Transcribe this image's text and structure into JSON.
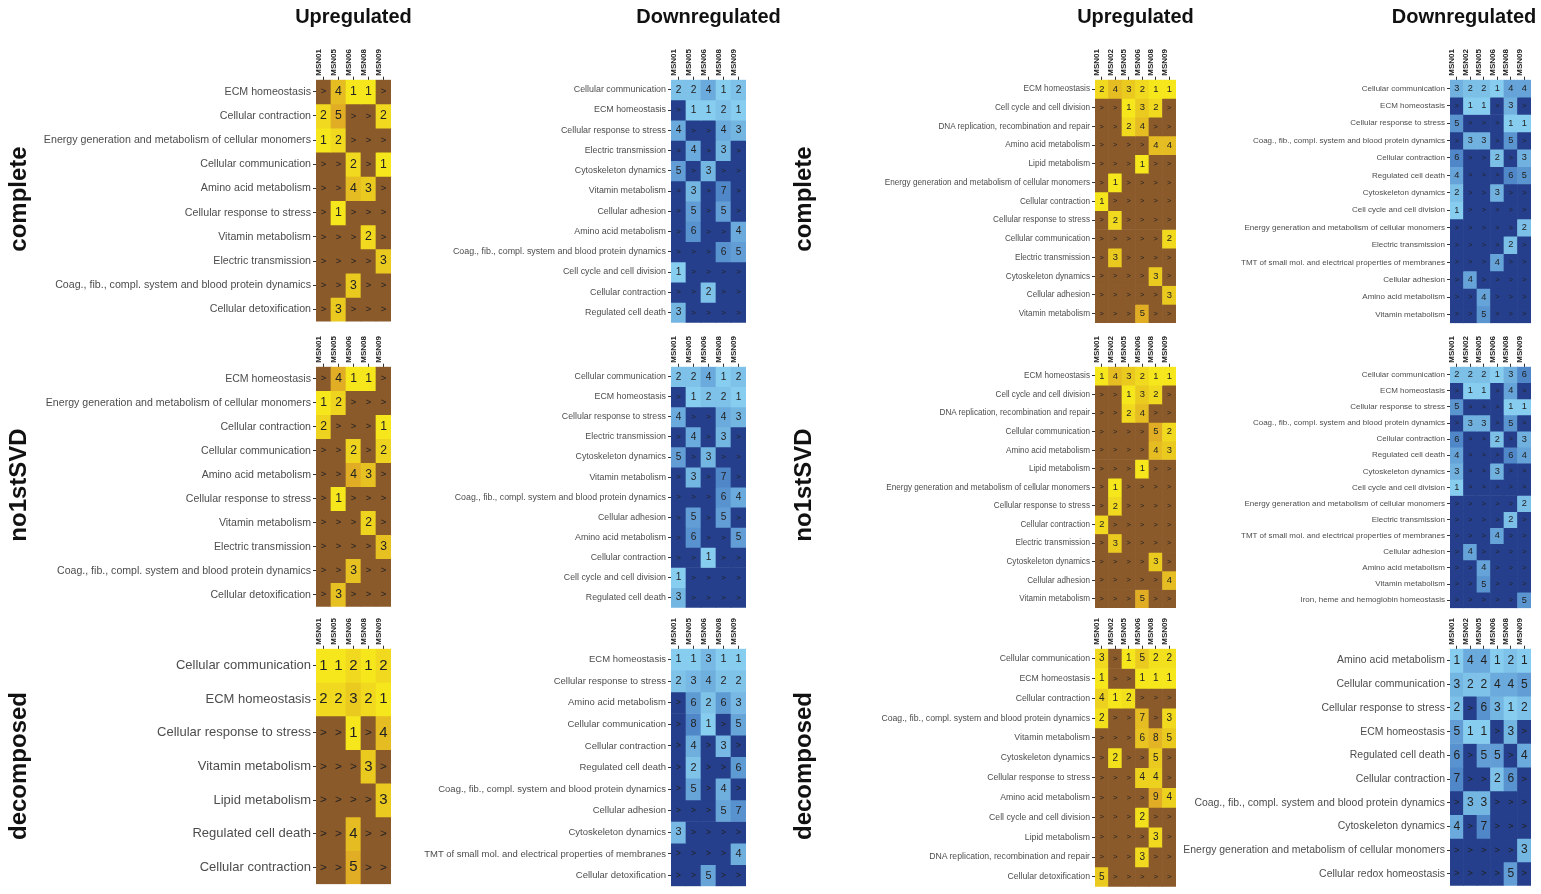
{
  "chart_data": [
    {
      "type": "heatmap",
      "title": "Upregulated",
      "ylabel": "complete",
      "colors": [
        "#f5e71c",
        "#e0ad24",
        "#8b5a2b"
      ],
      "categories": [
        "MSN01",
        "MSN05",
        "MSN06",
        "MSN08",
        "MSN09"
      ],
      "y_categories": [
        "ECM homeostasis",
        "Cellular contraction",
        "Energy generation and metabolism of cellular monomers",
        "Cellular communication",
        "Amino acid metabolism",
        "Cellular response to stress",
        "Vitamin metabolism",
        "Electric transmission",
        "Coag., fib., compl. system and blood protein dynamics",
        "Cellular detoxification"
      ],
      "cells": [
        [
          null,
          4,
          1,
          1,
          null
        ],
        [
          2,
          5,
          null,
          null,
          2
        ],
        [
          1,
          2,
          null,
          null,
          null
        ],
        [
          null,
          null,
          2,
          null,
          1
        ],
        [
          null,
          null,
          4,
          3,
          null
        ],
        [
          null,
          1,
          null,
          null,
          null
        ],
        [
          null,
          null,
          null,
          2,
          null
        ],
        [
          null,
          null,
          null,
          null,
          3
        ],
        [
          null,
          null,
          3,
          null,
          null
        ],
        [
          null,
          3,
          null,
          null,
          null
        ]
      ],
      "cell_labels": [
        [
          ">",
          "4",
          "1",
          "1",
          ">"
        ],
        [
          "2",
          "5",
          ">",
          ">",
          "2"
        ],
        [
          "1",
          "2",
          ">",
          ">",
          ">"
        ],
        [
          ">",
          ">",
          "2",
          ">",
          "1"
        ],
        [
          ">",
          ">",
          "4",
          "3",
          ">"
        ],
        [
          ">",
          "1",
          ">",
          ">",
          ">"
        ],
        [
          ">",
          ">",
          ">",
          "2",
          ">"
        ],
        [
          ">",
          ">",
          ">",
          ">",
          "3"
        ],
        [
          ">",
          ">",
          "3",
          ">",
          ">"
        ],
        [
          ">",
          "3",
          ">",
          ">",
          ">"
        ]
      ]
    },
    {
      "type": "heatmap",
      "title": "Downregulated",
      "colors": [
        "#87cdef",
        "#4f87c8",
        "#253f8c"
      ],
      "categories": [
        "MSN01",
        "MSN05",
        "MSN06",
        "MSN08",
        "MSN09"
      ],
      "y_categories": [
        "Cellular communication",
        "ECM homeostasis",
        "Cellular response to stress",
        "Electric transmission",
        "Cytoskeleton dynamics",
        "Vitamin metabolism",
        "Cellular adhesion",
        "Amino acid metabolism",
        "Coag., fib., compl. system and blood protein dynamics",
        "Cell cycle and cell division",
        "Cellular contraction",
        "Regulated cell death"
      ],
      "cells": [
        [
          2,
          2,
          4,
          1,
          2
        ],
        [
          null,
          1,
          1,
          2,
          1
        ],
        [
          4,
          null,
          null,
          4,
          3
        ],
        [
          null,
          4,
          null,
          3,
          null
        ],
        [
          5,
          null,
          3,
          null,
          null
        ],
        [
          null,
          3,
          null,
          7,
          null
        ],
        [
          null,
          5,
          null,
          5,
          null
        ],
        [
          null,
          6,
          null,
          null,
          4
        ],
        [
          null,
          null,
          null,
          6,
          5
        ],
        [
          1,
          null,
          null,
          null,
          null
        ],
        [
          null,
          null,
          2,
          null,
          null
        ],
        [
          3,
          null,
          null,
          null,
          null
        ]
      ],
      "cell_labels": [
        [
          "2",
          "2",
          "4",
          "1",
          "2"
        ],
        [
          ">",
          "1",
          "1",
          "2",
          "1"
        ],
        [
          "4",
          ">",
          ">",
          "4",
          "3"
        ],
        [
          ">",
          "4",
          ">",
          "3",
          ">"
        ],
        [
          "5",
          ">",
          "3",
          ">",
          ">"
        ],
        [
          ">",
          "3",
          ">",
          "7",
          ">"
        ],
        [
          ">",
          "5",
          ">",
          "5",
          ">"
        ],
        [
          ">",
          "6",
          ">",
          ">",
          "4"
        ],
        [
          ">",
          ">",
          ">",
          "6",
          "5"
        ],
        [
          "1",
          ">",
          ">",
          ">",
          ">"
        ],
        [
          ">",
          ">",
          "2",
          ">",
          ">"
        ],
        [
          "3",
          ">",
          ">",
          ">",
          ">"
        ]
      ]
    },
    {
      "type": "heatmap",
      "title": "Upregulated",
      "ylabel": "complete",
      "colors": [
        "#f5e71c",
        "#e0ad24",
        "#8b5a2b"
      ],
      "categories": [
        "MSN01",
        "MSN02",
        "MSN05",
        "MSN06",
        "MSN08",
        "MSN09"
      ],
      "y_categories": [
        "ECM homeostasis",
        "Cell cycle and cell division",
        "DNA replication, recombination and repair",
        "Amino acid metabolism",
        "Lipid metabolism",
        "Energy generation and metabolism of cellular monomers",
        "Cellular contraction",
        "Cellular response to stress",
        "Cellular communication",
        "Electric transmission",
        "Cytoskeleton dynamics",
        "Cellular adhesion",
        "Vitamin metabolism"
      ],
      "cells": [
        [
          2,
          4,
          3,
          2,
          1,
          1
        ],
        [
          null,
          null,
          1,
          3,
          2,
          null
        ],
        [
          null,
          null,
          2,
          4,
          null,
          null
        ],
        [
          null,
          null,
          null,
          null,
          4,
          4
        ],
        [
          null,
          null,
          null,
          1,
          null,
          null
        ],
        [
          null,
          1,
          null,
          null,
          null,
          null
        ],
        [
          1,
          null,
          null,
          null,
          null,
          null
        ],
        [
          null,
          2,
          null,
          null,
          null,
          null
        ],
        [
          null,
          null,
          null,
          null,
          null,
          2
        ],
        [
          null,
          3,
          null,
          null,
          null,
          null
        ],
        [
          null,
          null,
          null,
          null,
          3,
          null
        ],
        [
          null,
          null,
          null,
          null,
          null,
          3
        ],
        [
          null,
          null,
          null,
          5,
          null,
          null
        ]
      ],
      "cell_labels": [
        [
          "2",
          "4",
          "3",
          "2",
          "1",
          "1"
        ],
        [
          ">",
          ">",
          "1",
          "3",
          "2",
          ">"
        ],
        [
          ">",
          ">",
          "2",
          "4",
          ">",
          ">"
        ],
        [
          ">",
          ">",
          ">",
          ">",
          "4",
          "4"
        ],
        [
          ">",
          ">",
          ">",
          "1",
          ">",
          ">"
        ],
        [
          ">",
          "1",
          ">",
          ">",
          ">",
          ">"
        ],
        [
          "1",
          ">",
          ">",
          ">",
          ">",
          ">"
        ],
        [
          ">",
          "2",
          ">",
          ">",
          ">",
          ">"
        ],
        [
          ">",
          ">",
          ">",
          ">",
          ">",
          "2"
        ],
        [
          ">",
          "3",
          ">",
          ">",
          ">",
          ">"
        ],
        [
          ">",
          ">",
          ">",
          ">",
          "3",
          ">"
        ],
        [
          ">",
          ">",
          ">",
          ">",
          ">",
          "3"
        ],
        [
          ">",
          ">",
          ">",
          "5",
          ">",
          ">"
        ]
      ]
    },
    {
      "type": "heatmap",
      "title": "Downregulated",
      "colors": [
        "#87cdef",
        "#4f87c8",
        "#253f8c"
      ],
      "categories": [
        "MSN01",
        "MSN02",
        "MSN05",
        "MSN06",
        "MSN08",
        "MSN09"
      ],
      "y_categories": [
        "Cellular communication",
        "ECM homeostasis",
        "Cellular response to stress",
        "Coag., fib., compl. system and blood protein dynamics",
        "Cellular contraction",
        "Regulated cell death",
        "Cytoskeleton dynamics",
        "Cell cycle and cell division",
        "Energy generation and metabolism of cellular monomers",
        "Electric transmission",
        "TMT of small mol. and electrical properties of membranes",
        "Cellular adhesion",
        "Amino acid metabolism",
        "Vitamin metabolism"
      ],
      "cells": [
        [
          3,
          2,
          2,
          1,
          4,
          4
        ],
        [
          null,
          1,
          1,
          null,
          3,
          null
        ],
        [
          5,
          null,
          null,
          null,
          1,
          1
        ],
        [
          null,
          3,
          3,
          null,
          5,
          null
        ],
        [
          6,
          null,
          null,
          2,
          null,
          3
        ],
        [
          4,
          null,
          null,
          null,
          6,
          5
        ],
        [
          2,
          null,
          null,
          3,
          null,
          null
        ],
        [
          1,
          null,
          null,
          null,
          null,
          null
        ],
        [
          null,
          null,
          null,
          null,
          null,
          2
        ],
        [
          null,
          null,
          null,
          null,
          2,
          null
        ],
        [
          null,
          null,
          null,
          4,
          null,
          null
        ],
        [
          null,
          4,
          null,
          null,
          null,
          null
        ],
        [
          null,
          null,
          4,
          null,
          null,
          null
        ],
        [
          null,
          null,
          5,
          null,
          null,
          null
        ]
      ],
      "cell_labels": [
        [
          "3",
          "2",
          "2",
          "1",
          "4",
          "4"
        ],
        [
          ">",
          "1",
          "1",
          ">",
          "3",
          ">"
        ],
        [
          "5",
          ">",
          ">",
          ">",
          "1",
          "1"
        ],
        [
          ">",
          "3",
          "3",
          ">",
          "5",
          ">"
        ],
        [
          "6",
          ">",
          ">",
          "2",
          ">",
          "3"
        ],
        [
          "4",
          ">",
          ">",
          ">",
          "6",
          "5"
        ],
        [
          "2",
          ">",
          ">",
          "3",
          ">",
          ">"
        ],
        [
          "1",
          ">",
          ">",
          ">",
          ">",
          ">"
        ],
        [
          ">",
          ">",
          ">",
          ">",
          ">",
          "2"
        ],
        [
          ">",
          ">",
          ">",
          ">",
          "2",
          ">"
        ],
        [
          ">",
          ">",
          ">",
          "4",
          ">",
          ">"
        ],
        [
          ">",
          "4",
          ">",
          ">",
          ">",
          ">"
        ],
        [
          ">",
          ">",
          "4",
          ">",
          ">",
          ">"
        ],
        [
          ">",
          ">",
          "5",
          ">",
          ">",
          ">"
        ]
      ]
    },
    {
      "type": "heatmap",
      "ylabel": "no1stSVD",
      "colors": [
        "#f5e71c",
        "#e0ad24",
        "#8b5a2b"
      ],
      "categories": [
        "MSN01",
        "MSN05",
        "MSN06",
        "MSN08",
        "MSN09"
      ],
      "y_categories": [
        "ECM homeostasis",
        "Energy generation and metabolism of cellular monomers",
        "Cellular contraction",
        "Cellular communication",
        "Amino acid metabolism",
        "Cellular response to stress",
        "Vitamin metabolism",
        "Electric transmission",
        "Coag., fib., compl. system and blood protein dynamics",
        "Cellular detoxification"
      ],
      "cells": [
        [
          null,
          4,
          1,
          1,
          null
        ],
        [
          1,
          2,
          null,
          null,
          null
        ],
        [
          2,
          null,
          null,
          null,
          1
        ],
        [
          null,
          null,
          2,
          null,
          2
        ],
        [
          null,
          null,
          4,
          3,
          null
        ],
        [
          null,
          1,
          null,
          null,
          null
        ],
        [
          null,
          null,
          null,
          2,
          null
        ],
        [
          null,
          null,
          null,
          null,
          3
        ],
        [
          null,
          null,
          3,
          null,
          null
        ],
        [
          null,
          3,
          null,
          null,
          null
        ]
      ],
      "cell_labels": [
        [
          ">",
          "4",
          "1",
          "1",
          ">"
        ],
        [
          "1",
          "2",
          ">",
          ">",
          ">"
        ],
        [
          "2",
          ">",
          ">",
          ">",
          "1"
        ],
        [
          ">",
          ">",
          "2",
          ">",
          "2"
        ],
        [
          ">",
          ">",
          "4",
          "3",
          ">"
        ],
        [
          ">",
          "1",
          ">",
          ">",
          ">"
        ],
        [
          ">",
          ">",
          ">",
          "2",
          ">"
        ],
        [
          ">",
          ">",
          ">",
          ">",
          "3"
        ],
        [
          ">",
          ">",
          "3",
          ">",
          ">"
        ],
        [
          ">",
          "3",
          ">",
          ">",
          ">"
        ]
      ]
    },
    {
      "type": "heatmap",
      "colors": [
        "#87cdef",
        "#4f87c8",
        "#253f8c"
      ],
      "categories": [
        "MSN01",
        "MSN05",
        "MSN06",
        "MSN08",
        "MSN09"
      ],
      "y_categories": [
        "Cellular communication",
        "ECM homeostasis",
        "Cellular response to stress",
        "Electric transmission",
        "Cytoskeleton dynamics",
        "Vitamin metabolism",
        "Coag., fib., compl. system and blood protein dynamics",
        "Cellular adhesion",
        "Amino acid metabolism",
        "Cellular contraction",
        "Cell cycle and cell division",
        "Regulated cell death"
      ],
      "cells": [
        [
          2,
          2,
          4,
          1,
          2
        ],
        [
          null,
          1,
          2,
          2,
          1
        ],
        [
          4,
          null,
          null,
          4,
          3
        ],
        [
          null,
          4,
          null,
          3,
          null
        ],
        [
          5,
          null,
          3,
          null,
          null
        ],
        [
          null,
          3,
          null,
          7,
          null
        ],
        [
          null,
          null,
          null,
          6,
          4
        ],
        [
          null,
          5,
          null,
          5,
          null
        ],
        [
          null,
          6,
          null,
          null,
          5
        ],
        [
          null,
          null,
          1,
          null,
          null
        ],
        [
          1,
          null,
          null,
          null,
          null
        ],
        [
          3,
          null,
          null,
          null,
          null
        ]
      ],
      "cell_labels": [
        [
          "2",
          "2",
          "4",
          "1",
          "2"
        ],
        [
          ">",
          "1",
          "2",
          "2",
          "1"
        ],
        [
          "4",
          ">",
          ">",
          "4",
          "3"
        ],
        [
          ">",
          "4",
          ">",
          "3",
          ">"
        ],
        [
          "5",
          ">",
          "3",
          ">",
          ">"
        ],
        [
          ">",
          "3",
          ">",
          "7",
          ">"
        ],
        [
          ">",
          ">",
          ">",
          "6",
          "4"
        ],
        [
          ">",
          "5",
          ">",
          "5",
          ">"
        ],
        [
          ">",
          "6",
          ">",
          ">",
          "5"
        ],
        [
          ">",
          ">",
          "1",
          ">",
          ">"
        ],
        [
          "1",
          ">",
          ">",
          ">",
          ">"
        ],
        [
          "3",
          ">",
          ">",
          ">",
          ">"
        ]
      ]
    },
    {
      "type": "heatmap",
      "ylabel": "no1stSVD",
      "colors": [
        "#f5e71c",
        "#e0ad24",
        "#8b5a2b"
      ],
      "categories": [
        "MSN01",
        "MSN02",
        "MSN05",
        "MSN06",
        "MSN08",
        "MSN09"
      ],
      "y_categories": [
        "ECM homeostasis",
        "Cell cycle and cell division",
        "DNA replication, recombination and repair",
        "Cellular communication",
        "Amino acid metabolism",
        "Lipid metabolism",
        "Energy generation and metabolism of cellular monomers",
        "Cellular response to stress",
        "Cellular contraction",
        "Electric transmission",
        "Cytoskeleton dynamics",
        "Cellular adhesion",
        "Vitamin metabolism"
      ],
      "cells": [
        [
          1,
          4,
          3,
          2,
          1,
          1
        ],
        [
          null,
          null,
          1,
          3,
          2,
          null
        ],
        [
          null,
          null,
          2,
          4,
          null,
          null
        ],
        [
          null,
          null,
          null,
          null,
          5,
          2
        ],
        [
          null,
          null,
          null,
          null,
          4,
          3
        ],
        [
          null,
          null,
          null,
          1,
          null,
          null
        ],
        [
          null,
          1,
          null,
          null,
          null,
          null
        ],
        [
          null,
          2,
          null,
          null,
          null,
          null
        ],
        [
          2,
          null,
          null,
          null,
          null,
          null
        ],
        [
          null,
          3,
          null,
          null,
          null,
          null
        ],
        [
          null,
          null,
          null,
          null,
          3,
          null
        ],
        [
          null,
          null,
          null,
          null,
          null,
          4
        ],
        [
          null,
          null,
          null,
          5,
          null,
          null
        ]
      ],
      "cell_labels": [
        [
          "1",
          "4",
          "3",
          "2",
          "1",
          "1"
        ],
        [
          ">",
          ">",
          "1",
          "3",
          "2",
          ">"
        ],
        [
          ">",
          ">",
          "2",
          "4",
          ">",
          ">"
        ],
        [
          ">",
          ">",
          ">",
          ">",
          "5",
          "2"
        ],
        [
          ">",
          ">",
          ">",
          ">",
          "4",
          "3"
        ],
        [
          ">",
          ">",
          ">",
          "1",
          ">",
          ">"
        ],
        [
          ">",
          "1",
          ">",
          ">",
          ">",
          ">"
        ],
        [
          ">",
          "2",
          ">",
          ">",
          ">",
          ">"
        ],
        [
          "2",
          ">",
          ">",
          ">",
          ">",
          ">"
        ],
        [
          ">",
          "3",
          ">",
          ">",
          ">",
          ">"
        ],
        [
          ">",
          ">",
          ">",
          ">",
          "3",
          ">"
        ],
        [
          ">",
          ">",
          ">",
          ">",
          ">",
          "4"
        ],
        [
          ">",
          ">",
          ">",
          "5",
          ">",
          ">"
        ]
      ]
    },
    {
      "type": "heatmap",
      "colors": [
        "#87cdef",
        "#4f87c8",
        "#253f8c"
      ],
      "categories": [
        "MSN01",
        "MSN02",
        "MSN05",
        "MSN06",
        "MSN08",
        "MSN09"
      ],
      "y_categories": [
        "Cellular communication",
        "ECM homeostasis",
        "Cellular response to stress",
        "Coag., fib., compl. system and blood protein dynamics",
        "Cellular contraction",
        "Regulated cell death",
        "Cytoskeleton dynamics",
        "Cell cycle and cell division",
        "Energy generation and metabolism of cellular monomers",
        "Electric transmission",
        "TMT of small mol. and electrical properties of membranes",
        "Cellular adhesion",
        "Amino acid metabolism",
        "Vitamin metabolism",
        "Iron, heme and hemoglobin homeostasis"
      ],
      "cells": [
        [
          2,
          2,
          2,
          1,
          3,
          6
        ],
        [
          null,
          1,
          1,
          null,
          4,
          null
        ],
        [
          5,
          null,
          null,
          null,
          1,
          1
        ],
        [
          null,
          3,
          3,
          null,
          5,
          null
        ],
        [
          6,
          null,
          null,
          2,
          null,
          3
        ],
        [
          4,
          null,
          null,
          null,
          6,
          4
        ],
        [
          3,
          null,
          null,
          3,
          null,
          null
        ],
        [
          1,
          null,
          null,
          null,
          null,
          null
        ],
        [
          null,
          null,
          null,
          null,
          null,
          2
        ],
        [
          null,
          null,
          null,
          null,
          2,
          null
        ],
        [
          null,
          null,
          null,
          4,
          null,
          null
        ],
        [
          null,
          4,
          null,
          null,
          null,
          null
        ],
        [
          null,
          null,
          4,
          null,
          null,
          null
        ],
        [
          null,
          null,
          5,
          null,
          null,
          null
        ],
        [
          null,
          null,
          null,
          null,
          null,
          5
        ]
      ],
      "cell_labels": [
        [
          "2",
          "2",
          "2",
          "1",
          "3",
          "6"
        ],
        [
          ">",
          "1",
          "1",
          ">",
          "4",
          ">"
        ],
        [
          "5",
          ">",
          ">",
          ">",
          "1",
          "1"
        ],
        [
          ">",
          "3",
          "3",
          ">",
          "5",
          ">"
        ],
        [
          "6",
          ">",
          ">",
          "2",
          ">",
          "3"
        ],
        [
          "4",
          ">",
          ">",
          ">",
          "6",
          "4"
        ],
        [
          "3",
          ">",
          ">",
          "3",
          ">",
          ">"
        ],
        [
          "1",
          ">",
          ">",
          ">",
          ">",
          ">"
        ],
        [
          ">",
          ">",
          ">",
          ">",
          ">",
          "2"
        ],
        [
          ">",
          ">",
          ">",
          ">",
          "2",
          ">"
        ],
        [
          ">",
          ">",
          ">",
          "4",
          ">",
          ">"
        ],
        [
          ">",
          "4",
          ">",
          ">",
          ">",
          ">"
        ],
        [
          ">",
          ">",
          "4",
          ">",
          ">",
          ">"
        ],
        [
          ">",
          ">",
          "5",
          ">",
          ">",
          ">"
        ],
        [
          ">",
          ">",
          ">",
          ">",
          ">",
          "5"
        ]
      ]
    },
    {
      "type": "heatmap",
      "ylabel": "decomposed",
      "colors": [
        "#f5e71c",
        "#e0ad24",
        "#8b5a2b"
      ],
      "categories": [
        "MSN01",
        "MSN05",
        "MSN06",
        "MSN08",
        "MSN09"
      ],
      "y_categories": [
        "Cellular communication",
        "ECM homeostasis",
        "Cellular response to stress",
        "Vitamin metabolism",
        "Lipid metabolism",
        "Regulated cell death",
        "Cellular contraction"
      ],
      "cells": [
        [
          1,
          1,
          2,
          1,
          2
        ],
        [
          2,
          2,
          3,
          2,
          1
        ],
        [
          null,
          null,
          1,
          null,
          4
        ],
        [
          null,
          null,
          null,
          3,
          null
        ],
        [
          null,
          null,
          null,
          null,
          3
        ],
        [
          null,
          null,
          4,
          null,
          null
        ],
        [
          null,
          null,
          5,
          null,
          null
        ]
      ],
      "cell_labels": [
        [
          "1",
          "1",
          "2",
          "1",
          "2"
        ],
        [
          "2",
          "2",
          "3",
          "2",
          "1"
        ],
        [
          ">",
          ">",
          "1",
          ">",
          "4"
        ],
        [
          ">",
          ">",
          ">",
          "3",
          ">"
        ],
        [
          ">",
          ">",
          ">",
          ">",
          "3"
        ],
        [
          ">",
          ">",
          "4",
          ">",
          ">"
        ],
        [
          ">",
          ">",
          "5",
          ">",
          ">"
        ]
      ]
    },
    {
      "type": "heatmap",
      "colors": [
        "#87cdef",
        "#4f87c8",
        "#253f8c"
      ],
      "categories": [
        "MSN01",
        "MSN05",
        "MSN06",
        "MSN08",
        "MSN09"
      ],
      "y_categories": [
        "ECM homeostasis",
        "Cellular response to stress",
        "Amino acid metabolism",
        "Cellular communication",
        "Cellular contraction",
        "Regulated cell death",
        "Coag., fib., compl. system and blood protein dynamics",
        "Cellular adhesion",
        "Cytoskeleton dynamics",
        "TMT of small mol. and electrical properties of membranes",
        "Cellular detoxification"
      ],
      "cells": [
        [
          1,
          1,
          3,
          1,
          1
        ],
        [
          2,
          3,
          4,
          2,
          2
        ],
        [
          null,
          6,
          2,
          6,
          3
        ],
        [
          null,
          8,
          1,
          null,
          5
        ],
        [
          null,
          4,
          null,
          3,
          null
        ],
        [
          null,
          2,
          null,
          null,
          6
        ],
        [
          null,
          5,
          null,
          4,
          null
        ],
        [
          null,
          null,
          null,
          5,
          7
        ],
        [
          3,
          null,
          null,
          null,
          null
        ],
        [
          null,
          null,
          null,
          null,
          4
        ],
        [
          null,
          null,
          5,
          null,
          null
        ]
      ],
      "cell_labels": [
        [
          "1",
          "1",
          "3",
          "1",
          "1"
        ],
        [
          "2",
          "3",
          "4",
          "2",
          "2"
        ],
        [
          ">",
          "6",
          "2",
          "6",
          "3"
        ],
        [
          ">",
          "8",
          "1",
          ">",
          "5"
        ],
        [
          ">",
          "4",
          ">",
          "3",
          ">"
        ],
        [
          ">",
          "2",
          ">",
          ">",
          "6"
        ],
        [
          ">",
          "5",
          ">",
          "4",
          ">"
        ],
        [
          ">",
          ">",
          ">",
          "5",
          "7"
        ],
        [
          "3",
          ">",
          ">",
          ">",
          ">"
        ],
        [
          ">",
          ">",
          ">",
          ">",
          "4"
        ],
        [
          ">",
          ">",
          "5",
          ">",
          ">"
        ]
      ]
    },
    {
      "type": "heatmap",
      "ylabel": "decomposed",
      "colors": [
        "#f5e71c",
        "#e0ad24",
        "#8b5a2b"
      ],
      "categories": [
        "MSN01",
        "MSN02",
        "MSN05",
        "MSN06",
        "MSN08",
        "MSN09"
      ],
      "y_categories": [
        "Cellular communication",
        "ECM homeostasis",
        "Cellular contraction",
        "Coag., fib., compl. system and blood protein dynamics",
        "Vitamin metabolism",
        "Cytoskeleton dynamics",
        "Cellular response to stress",
        "Amino acid metabolism",
        "Cell cycle and cell division",
        "Lipid metabolism",
        "DNA replication, recombination and repair",
        "Cellular detoxification"
      ],
      "cells": [
        [
          3,
          null,
          1,
          5,
          2,
          2
        ],
        [
          1,
          null,
          null,
          1,
          1,
          1
        ],
        [
          4,
          1,
          2,
          null,
          null,
          null
        ],
        [
          2,
          null,
          null,
          7,
          null,
          3
        ],
        [
          null,
          null,
          null,
          6,
          8,
          5
        ],
        [
          null,
          2,
          null,
          null,
          5,
          null
        ],
        [
          null,
          null,
          null,
          4,
          4,
          null
        ],
        [
          null,
          null,
          null,
          null,
          9,
          4
        ],
        [
          null,
          null,
          null,
          2,
          null,
          null
        ],
        [
          null,
          null,
          null,
          null,
          3,
          null
        ],
        [
          null,
          null,
          null,
          3,
          null,
          null
        ],
        [
          5,
          null,
          null,
          null,
          null,
          null
        ]
      ],
      "cell_labels": [
        [
          "3",
          ">",
          "1",
          "5",
          "2",
          "2"
        ],
        [
          "1",
          ">",
          ">",
          "1",
          "1",
          "1"
        ],
        [
          "4",
          "1",
          "2",
          ">",
          ">",
          ">"
        ],
        [
          "2",
          ">",
          ">",
          "7",
          ">",
          "3"
        ],
        [
          ">",
          ">",
          ">",
          "6",
          "8",
          "5"
        ],
        [
          ">",
          "2",
          ">",
          ">",
          "5",
          ">"
        ],
        [
          ">",
          ">",
          ">",
          "4",
          "4",
          ">"
        ],
        [
          ">",
          ">",
          ">",
          ">",
          "9",
          "4"
        ],
        [
          ">",
          ">",
          ">",
          "2",
          ">",
          ">"
        ],
        [
          ">",
          ">",
          ">",
          ">",
          "3",
          ">"
        ],
        [
          ">",
          ">",
          ">",
          "3",
          ">",
          ">"
        ],
        [
          "5",
          ">",
          ">",
          ">",
          ">",
          ">"
        ]
      ]
    },
    {
      "type": "heatmap",
      "colors": [
        "#87cdef",
        "#4f87c8",
        "#253f8c"
      ],
      "categories": [
        "MSN01",
        "MSN02",
        "MSN05",
        "MSN06",
        "MSN08",
        "MSN09"
      ],
      "y_categories": [
        "Amino acid metabolism",
        "Cellular communication",
        "Cellular response to stress",
        "ECM homeostasis",
        "Regulated cell death",
        "Cellular contraction",
        "Coag., fib., compl. system and blood protein dynamics",
        "Cytoskeleton dynamics",
        "Energy generation and metabolism of cellular monomers",
        "Cellular redox homeostasis"
      ],
      "cells": [
        [
          1,
          4,
          4,
          1,
          2,
          1
        ],
        [
          3,
          2,
          2,
          4,
          4,
          5
        ],
        [
          2,
          null,
          6,
          3,
          1,
          2
        ],
        [
          5,
          1,
          1,
          null,
          3,
          null
        ],
        [
          6,
          null,
          5,
          5,
          null,
          4
        ],
        [
          7,
          null,
          null,
          2,
          6,
          null
        ],
        [
          null,
          3,
          3,
          null,
          null,
          null
        ],
        [
          4,
          null,
          7,
          null,
          null,
          null
        ],
        [
          null,
          null,
          null,
          null,
          null,
          3
        ],
        [
          null,
          null,
          null,
          null,
          5,
          null
        ]
      ],
      "cell_labels": [
        [
          "1",
          "4",
          "4",
          "1",
          "2",
          "1"
        ],
        [
          "3",
          "2",
          "2",
          "4",
          "4",
          "5"
        ],
        [
          "2",
          ">",
          "6",
          "3",
          "1",
          "2"
        ],
        [
          "5",
          "1",
          "1",
          ">",
          "3",
          ">"
        ],
        [
          "6",
          ">",
          "5",
          "5",
          ">",
          "4"
        ],
        [
          "7",
          ">",
          ">",
          "2",
          "6",
          ">"
        ],
        [
          ">",
          "3",
          "3",
          ">",
          ">",
          ">"
        ],
        [
          "4",
          ">",
          "7",
          ">",
          ">",
          ">"
        ],
        [
          ">",
          ">",
          ">",
          ">",
          ">",
          "3"
        ],
        [
          ">",
          ">",
          ">",
          ">",
          "5",
          ">"
        ]
      ]
    }
  ]
}
